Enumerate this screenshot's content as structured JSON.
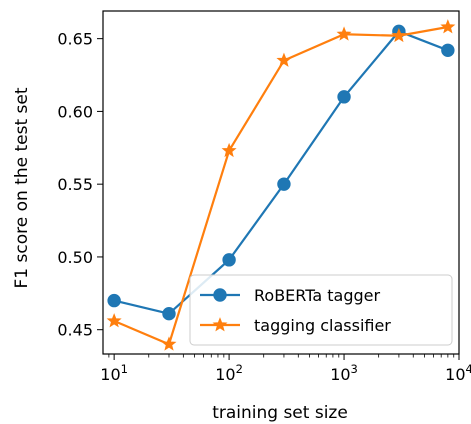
{
  "chart_data": {
    "type": "line",
    "xlabel": "training set size",
    "ylabel": "F1 score on the test set",
    "xscale": "log",
    "xlim": [
      8,
      10000
    ],
    "ylim": [
      0.4333,
      0.669
    ],
    "grid": false,
    "legend_position": "lower-right",
    "x_ticks": [
      {
        "value": 10,
        "base": "10",
        "exp": "1"
      },
      {
        "value": 100,
        "base": "10",
        "exp": "2"
      },
      {
        "value": 1000,
        "base": "10",
        "exp": "3"
      },
      {
        "value": 10000,
        "base": "10",
        "exp": "4"
      }
    ],
    "y_ticks": [
      {
        "value": 0.45,
        "label": "0.45"
      },
      {
        "value": 0.5,
        "label": "0.50"
      },
      {
        "value": 0.55,
        "label": "0.55"
      },
      {
        "value": 0.6,
        "label": "0.60"
      },
      {
        "value": 0.65,
        "label": "0.65"
      }
    ],
    "series": [
      {
        "name": "RoBERTa tagger",
        "color": "#1f77b4",
        "marker": "circle",
        "x": [
          10,
          30,
          100,
          300,
          1000,
          3000,
          8000
        ],
        "y": [
          0.47,
          0.461,
          0.498,
          0.55,
          0.61,
          0.655,
          0.642
        ]
      },
      {
        "name": "tagging classifier",
        "color": "#ff7f0e",
        "marker": "star",
        "x": [
          10,
          30,
          100,
          300,
          1000,
          3000,
          8000
        ],
        "y": [
          0.456,
          0.44,
          0.573,
          0.635,
          0.653,
          0.652,
          0.658
        ]
      }
    ]
  }
}
